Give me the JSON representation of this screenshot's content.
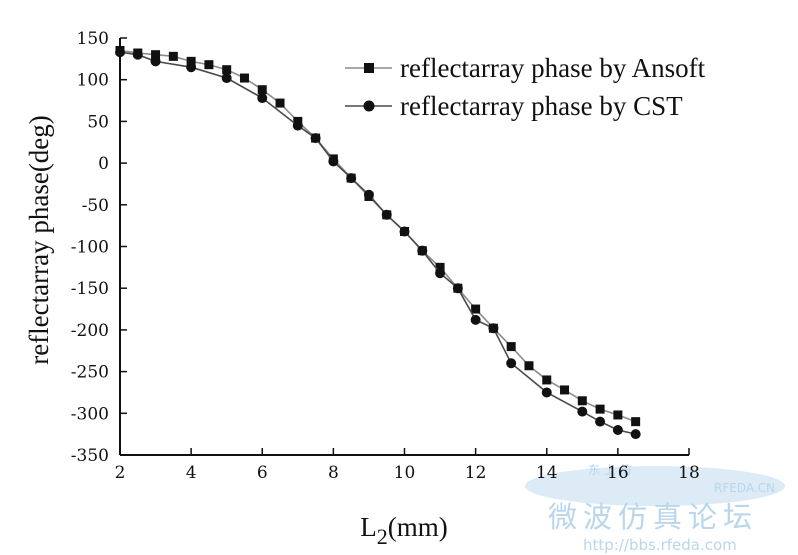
{
  "chart_data": {
    "type": "line",
    "title": "",
    "xlabel": "L",
    "xlabel_subscript": "2",
    "xlabel_unit": "(mm)",
    "ylabel": "reflectarray phase(deg)",
    "xlim": [
      2,
      18
    ],
    "ylim": [
      -350,
      150
    ],
    "xticks": [
      2,
      4,
      6,
      8,
      10,
      12,
      14,
      16,
      18
    ],
    "yticks": [
      150,
      100,
      50,
      0,
      -50,
      -100,
      -150,
      -200,
      -250,
      -300,
      -350
    ],
    "grid": false,
    "legend_position": "top-right",
    "series": [
      {
        "name": "reflectarray phase by Ansoft",
        "marker": "square",
        "color": "#111111",
        "line_color": "#8c8c8c",
        "x": [
          2,
          2.5,
          3,
          3.5,
          4,
          4.5,
          5,
          5.5,
          6,
          6.5,
          7,
          7.5,
          8,
          8.5,
          9,
          9.5,
          10,
          10.5,
          11,
          11.5,
          12,
          12.5,
          13,
          13.5,
          14,
          14.5,
          15,
          15.5,
          16,
          16.5
        ],
        "y": [
          135,
          132,
          130,
          128,
          122,
          118,
          112,
          102,
          88,
          72,
          50,
          30,
          5,
          -18,
          -40,
          -62,
          -82,
          -105,
          -125,
          -150,
          -175,
          -198,
          -220,
          -243,
          -260,
          -272,
          -285,
          -295,
          -302,
          -310
        ]
      },
      {
        "name": "reflectarray phase by CST",
        "marker": "circle",
        "color": "#111111",
        "line_color": "#4a4a4a",
        "x": [
          2,
          2.5,
          3,
          4,
          5,
          6,
          7,
          7.5,
          8,
          8.5,
          9,
          9.5,
          10,
          10.5,
          11,
          11.5,
          12,
          12.5,
          13,
          14,
          15,
          15.5,
          16,
          16.5
        ],
        "y": [
          133,
          130,
          122,
          115,
          102,
          78,
          45,
          30,
          2,
          -18,
          -38,
          -62,
          -82,
          -105,
          -132,
          -150,
          -188,
          -198,
          -240,
          -275,
          -298,
          -310,
          -320,
          -325
        ]
      }
    ]
  },
  "watermark": {
    "site": "RFEDA.CN",
    "chinese": "微波仿真论坛",
    "url": "http://bbs.rfeda.com",
    "small": "东 上 仿"
  },
  "colors": {
    "axis": "#111111",
    "watermark": "#b9d6ec"
  }
}
